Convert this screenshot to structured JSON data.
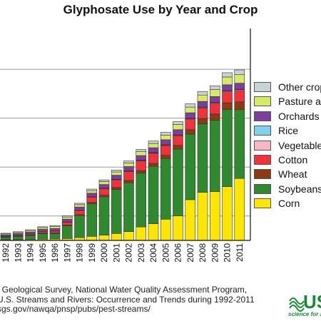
{
  "title": "Glyphosate Use by Year and Crop",
  "source_lines": [
    ". Geological Survey, National Water Quality Assessment Program,",
    "U.S. Streams and Rivers: Occurrence and Trends during 1992-2011",
    "sgs.gov/nawqa/pnsp/pubs/pest-streams/"
  ],
  "logo": {
    "letters": "US",
    "tagline": "science for a"
  },
  "chart_data": {
    "type": "bar",
    "stacked": true,
    "title": "Glyphosate Use by Year and Crop",
    "grid": true,
    "legend_position": "right",
    "categories": [
      "1992",
      "1993",
      "1994",
      "1995",
      "1996",
      "1997",
      "1998",
      "1999",
      "2000",
      "2001",
      "2002",
      "2003",
      "2004",
      "2005",
      "2006",
      "2007",
      "2008",
      "2009",
      "2010",
      "2011"
    ],
    "series": [
      {
        "name": "Corn",
        "color": "#ffe600",
        "values": [
          0.9,
          1.0,
          1.2,
          1.5,
          1.8,
          2.3,
          3.5,
          5.0,
          6.5,
          8.5,
          10.8,
          16.5,
          20.5,
          26.0,
          30.0,
          50.0,
          59.0,
          60.0,
          66.0,
          76.0
        ]
      },
      {
        "name": "Soybeans",
        "color": "#2f8a2f",
        "values": [
          3.0,
          3.7,
          4.8,
          6.8,
          6.5,
          15.5,
          27.0,
          40.0,
          47.0,
          54.0,
          60.0,
          66.0,
          70.5,
          74.5,
          82.0,
          80.5,
          84.0,
          87.5,
          94.5,
          84.5
        ]
      },
      {
        "name": "Wheat",
        "color": "#8b3a17",
        "values": [
          0.5,
          0.6,
          0.7,
          0.8,
          0.8,
          1.0,
          1.2,
          1.6,
          2.0,
          2.4,
          2.8,
          3.2,
          3.5,
          4.0,
          4.6,
          5.4,
          6.6,
          7.6,
          8.4,
          9.5
        ]
      },
      {
        "name": "Cotton",
        "color": "#f0323a",
        "values": [
          0.7,
          1.0,
          1.3,
          1.7,
          2.2,
          3.5,
          5.0,
          6.5,
          8.0,
          9.5,
          11.0,
          12.0,
          12.5,
          12.0,
          12.0,
          13.0,
          13.0,
          13.2,
          13.5,
          14.0
        ]
      },
      {
        "name": "Vegetables",
        "color": "#f6b8c4",
        "values": [
          0.1,
          0.1,
          0.1,
          0.1,
          0.2,
          0.2,
          0.2,
          0.3,
          0.3,
          0.4,
          0.4,
          0.5,
          0.5,
          0.6,
          0.6,
          0.7,
          0.8,
          0.8,
          0.9,
          1.0
        ]
      },
      {
        "name": "Rice",
        "color": "#7ed3ea",
        "values": [
          0.1,
          0.1,
          0.1,
          0.1,
          0.1,
          0.1,
          0.2,
          0.2,
          0.2,
          0.2,
          0.3,
          0.3,
          0.3,
          0.3,
          0.3,
          0.4,
          0.4,
          0.4,
          0.5,
          0.5
        ]
      },
      {
        "name": "Orchards a",
        "color": "#7b3f9e",
        "values": [
          1.5,
          1.8,
          2.2,
          2.6,
          3.0,
          3.5,
          3.9,
          4.3,
          4.6,
          5.0,
          5.3,
          5.6,
          5.9,
          6.1,
          6.4,
          6.6,
          6.8,
          7.0,
          7.2,
          7.4
        ]
      },
      {
        "name": "Pasture ar",
        "color": "#d7e86a",
        "values": [
          1.2,
          1.4,
          1.7,
          2.0,
          2.3,
          2.6,
          2.9,
          3.2,
          3.6,
          4.0,
          4.4,
          4.8,
          5.3,
          5.8,
          6.3,
          7.0,
          7.8,
          8.5,
          9.5,
          10.5
        ]
      },
      {
        "name": "Other crop",
        "color": "#c7d2d2",
        "values": [
          0.8,
          0.9,
          1.0,
          1.2,
          1.3,
          1.5,
          1.7,
          1.9,
          2.1,
          2.3,
          2.5,
          2.7,
          3.0,
          3.3,
          3.6,
          4.0,
          4.4,
          4.8,
          5.3,
          5.8
        ]
      }
    ],
    "legend_order": [
      "Other crop",
      "Pasture ar",
      "Orchards a",
      "Rice",
      "Vegetable",
      "Cotton",
      "Wheat",
      "Soybeans",
      "Corn"
    ],
    "ylim": [
      0,
      260
    ],
    "gridlines": [
      30,
      90,
      150,
      210
    ]
  }
}
